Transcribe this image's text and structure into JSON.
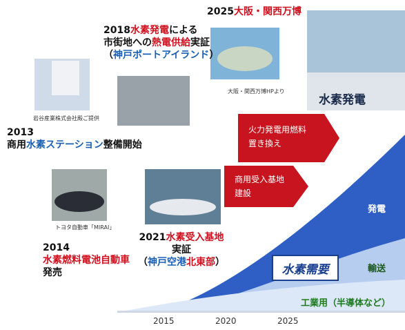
{
  "milestones": [
    {
      "lines": [
        [
          {
            "text": "2018",
            "tone": "dark"
          },
          {
            "text": "水素発電",
            "tone": "red"
          },
          {
            "text": "による",
            "tone": "dark"
          }
        ],
        [
          {
            "text": "市街地への",
            "tone": "dark"
          },
          {
            "text": "熱電供給",
            "tone": "red"
          },
          {
            "text": "実証",
            "tone": "dark"
          }
        ],
        [
          {
            "text": "（",
            "tone": "dark"
          },
          {
            "text": "神戸ポートアイランド",
            "tone": "blue"
          },
          {
            "text": "）",
            "tone": "dark"
          }
        ]
      ]
    },
    {
      "lines": [
        [
          {
            "text": "2025",
            "tone": "dark"
          },
          {
            "text": "大阪・関西万博",
            "tone": "red"
          }
        ]
      ]
    },
    {
      "lines": [
        [
          {
            "text": "2013",
            "tone": "dark"
          }
        ],
        [
          {
            "text": "商用",
            "tone": "dark"
          },
          {
            "text": "水素ステーション",
            "tone": "blue"
          },
          {
            "text": "整備開始",
            "tone": "dark"
          }
        ]
      ]
    },
    {
      "lines": [
        [
          {
            "text": "2014",
            "tone": "dark"
          }
        ],
        [
          {
            "text": "水素燃料電池自動車",
            "tone": "red"
          }
        ],
        [
          {
            "text": "発売",
            "tone": "dark"
          }
        ]
      ]
    },
    {
      "lines": [
        [
          {
            "text": "2021",
            "tone": "dark"
          },
          {
            "text": "水素受入基地",
            "tone": "red"
          }
        ],
        [
          {
            "text": "実証",
            "tone": "dark"
          }
        ],
        [
          {
            "text": "（",
            "tone": "dark"
          },
          {
            "text": "神戸空港",
            "tone": "blue"
          },
          {
            "text": "北東部",
            "tone": "red"
          },
          {
            "text": "）",
            "tone": "dark"
          }
        ]
      ]
    }
  ],
  "credits": [
    "大阪・関西万博HPより",
    "岩谷産業株式会社殿ご提供",
    "トヨタ自動車「MIRAI」"
  ],
  "plant_label": "水素発電",
  "arrows": [
    [
      "火力発電用燃料",
      "置き換え"
    ],
    [
      "商用受入基地",
      "建設"
    ]
  ],
  "demand": {
    "title": "水素需要",
    "segments": [
      "発電",
      "輸送",
      "工業用（半導体など）"
    ]
  },
  "years": [
    "2015",
    "2020",
    "2025"
  ]
}
